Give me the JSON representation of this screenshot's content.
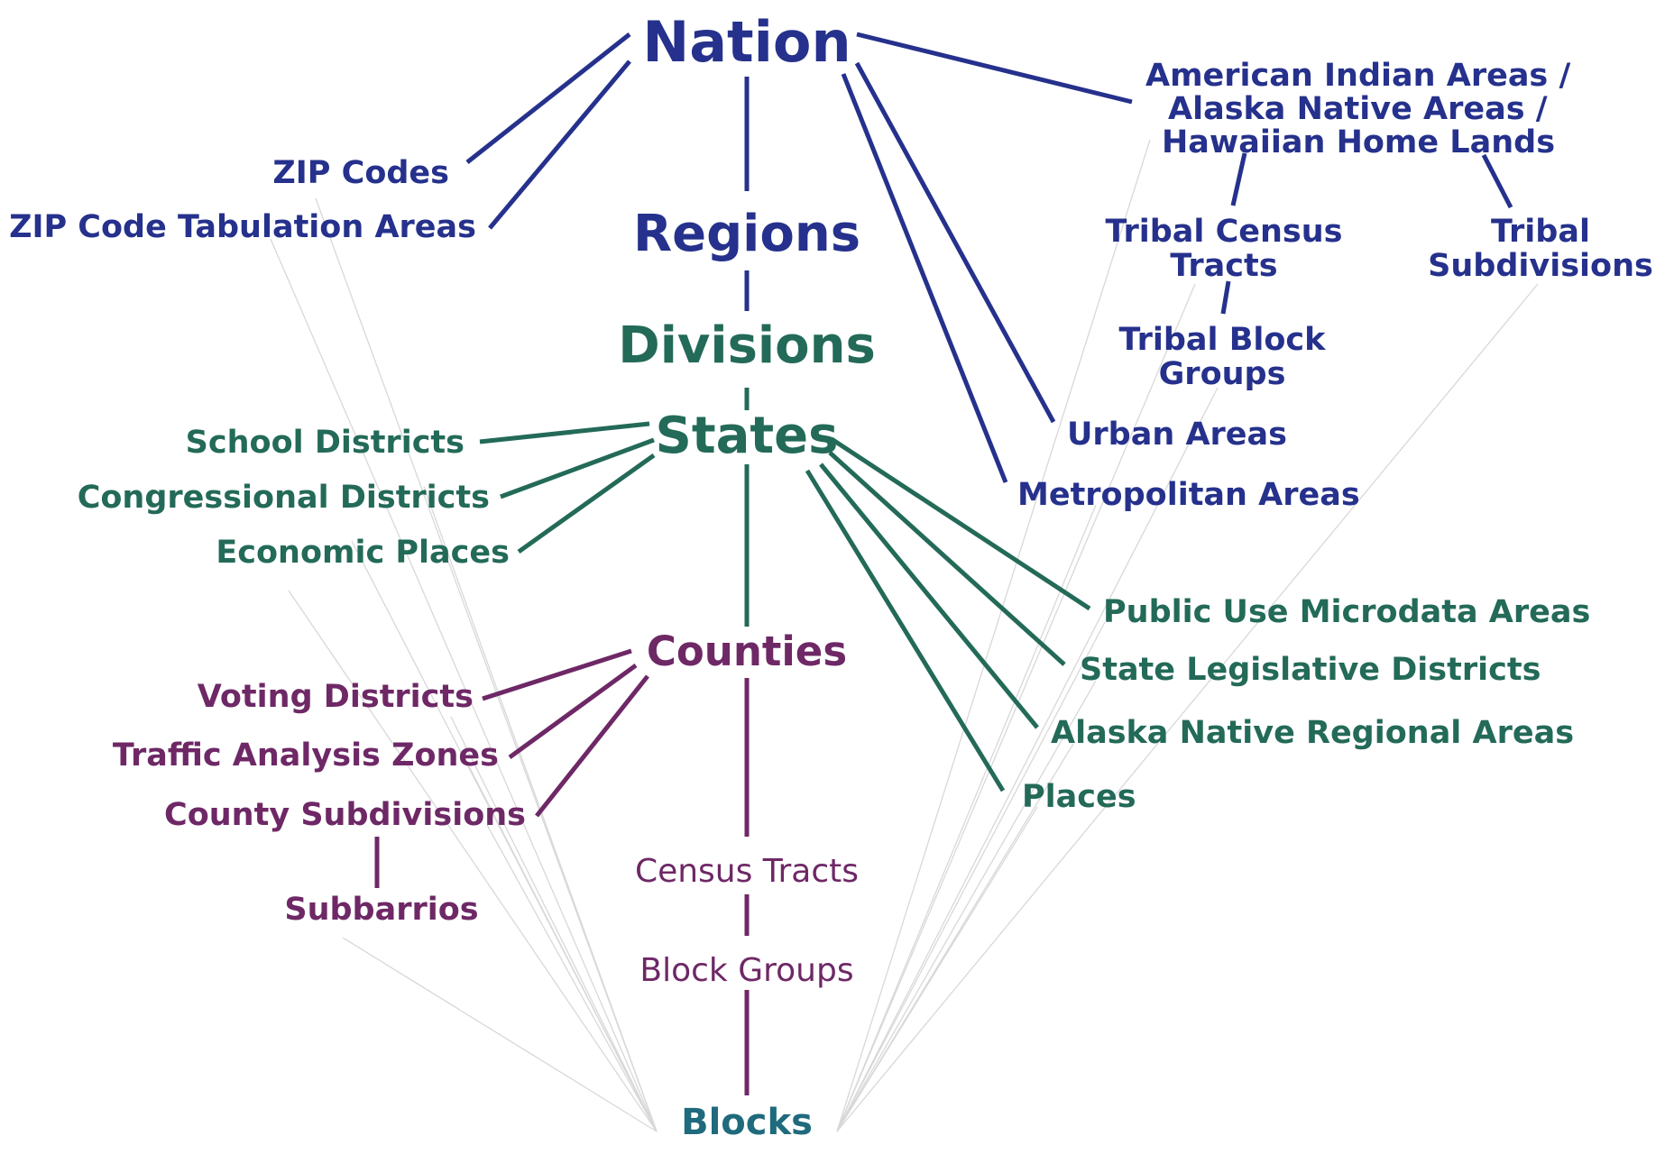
{
  "colors": {
    "blue": "#25318c",
    "green": "#236a58",
    "purple": "#6e2866",
    "teal": "#1f6a7d",
    "grey": "#d8d8d8"
  },
  "nodes": {
    "nation": "Nation",
    "regions": "Regions",
    "divisions": "Divisions",
    "states": "States",
    "counties": "Counties",
    "census_tracts": "Census Tracts",
    "block_groups": "Block Groups",
    "blocks": "Blocks",
    "zip_codes": "ZIP Codes",
    "zcta": "ZIP Code Tabulation Areas",
    "aian_line1": "American Indian Areas /",
    "aian_line2": "Alaska Native Areas /",
    "aian_line3": "Hawaiian Home Lands",
    "tribal_tracts_line1": "Tribal Census",
    "tribal_tracts_line2": "Tracts",
    "tribal_subdiv_line1": "Tribal",
    "tribal_subdiv_line2": "Subdivisions",
    "tribal_bg_line1": "Tribal Block",
    "tribal_bg_line2": "Groups",
    "urban_areas": "Urban Areas",
    "metro_areas": "Metropolitan Areas",
    "school_districts": "School Districts",
    "congressional_districts": "Congressional Districts",
    "economic_places": "Economic Places",
    "puma": "Public Use Microdata Areas",
    "sld": "State Legislative Districts",
    "anra": "Alaska Native Regional Areas",
    "places": "Places",
    "voting_districts": "Voting Districts",
    "taz": "Traffic Analysis Zones",
    "county_subdivisions": "County Subdivisions",
    "subbarrios": "Subbarrios"
  }
}
